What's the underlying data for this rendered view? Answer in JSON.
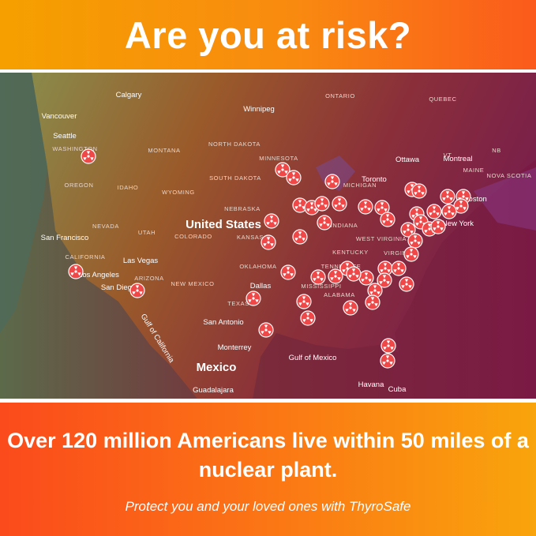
{
  "header": {
    "title": "Are you at risk?"
  },
  "map": {
    "labels": [
      "Calgary",
      "Vancouver",
      "Seattle",
      "WASHINGTON",
      "MONTANA",
      "NORTH DAKOTA",
      "Winnipeg",
      "ONTARIO",
      "QUEBEC",
      "OREGON",
      "IDAHO",
      "WYOMING",
      "SOUTH DAKOTA",
      "MINNESOTA",
      "NEBRASKA",
      "Ottawa",
      "Montreal",
      "NB",
      "MAINE",
      "NOVA SCOTIA",
      "VT",
      "Toronto",
      "MICHIGAN",
      "United States",
      "NEVADA",
      "UTAH",
      "COLORADO",
      "KANSAS",
      "San Francisco",
      "CALIFORNIA",
      "Las Vegas",
      "OKLAHOMA",
      "KENTUCKY",
      "WEST VIRGINIA",
      "VIRGINIA",
      "INDIANA",
      "TENNESSEE",
      "New York",
      "Boston",
      "Los Angeles",
      "ARIZONA",
      "NEW MEXICO",
      "San Diego",
      "Dallas",
      "TEXAS",
      "MISSISSIPPI",
      "ALABAMA",
      "San Antonio",
      "Monterrey",
      "Gulf of Mexico",
      "Gulf of California",
      "Mexico",
      "Guadalajara",
      "Havana",
      "Cuba"
    ]
  },
  "footer": {
    "headline": "Over 120 million Americans live within 50 miles of a nuclear plant.",
    "tagline": "Protect you and your loved ones with ThyroSafe"
  }
}
